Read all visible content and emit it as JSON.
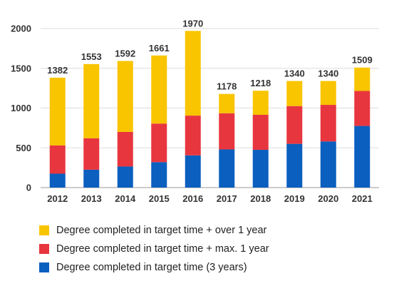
{
  "chart_data": {
    "type": "bar",
    "stacked": true,
    "categories": [
      "2012",
      "2013",
      "2014",
      "2015",
      "2016",
      "2017",
      "2018",
      "2019",
      "2020",
      "2021"
    ],
    "series": [
      {
        "name": "Degree completed in target time (3 years)",
        "color": "#0a5fbf",
        "values": [
          175,
          225,
          265,
          320,
          405,
          480,
          475,
          550,
          580,
          775
        ]
      },
      {
        "name": "Degree completed in target time + max. 1 year",
        "color": "#e8363f",
        "values": [
          355,
          395,
          435,
          485,
          500,
          455,
          440,
          475,
          460,
          440
        ]
      },
      {
        "name": "Degree completed in target time + over 1 year",
        "color": "#f9c400",
        "values": [
          852,
          933,
          892,
          856,
          1065,
          243,
          303,
          315,
          300,
          294
        ]
      }
    ],
    "totals": [
      "1382",
      "1553",
      "1592",
      "1661",
      "1970",
      "1178",
      "1218",
      "1340",
      "1340",
      "1509"
    ],
    "y_ticks": [
      "0",
      "500",
      "1000",
      "1500",
      "2000"
    ],
    "ylim": [
      0,
      2000
    ],
    "grid": true,
    "legend_position": "bottom",
    "title": "",
    "xlabel": "",
    "ylabel": ""
  },
  "legend": [
    {
      "label": "Degree completed in target time + over 1 year",
      "color": "#f9c400"
    },
    {
      "label": "Degree completed in target time + max. 1 year",
      "color": "#e8363f"
    },
    {
      "label": "Degree completed in target time (3 years)",
      "color": "#0a5fbf"
    }
  ]
}
